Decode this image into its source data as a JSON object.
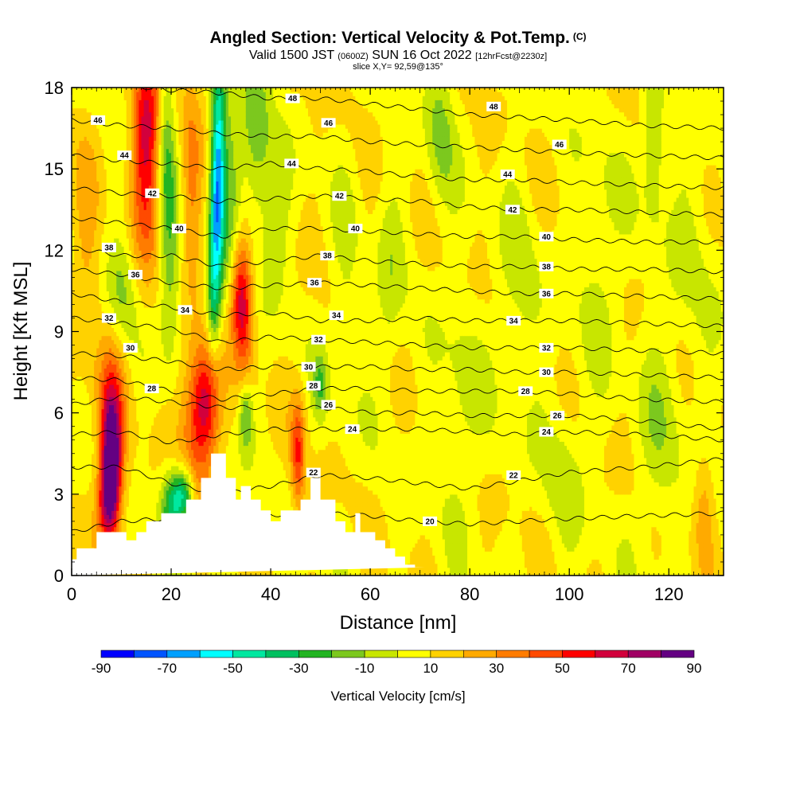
{
  "title": {
    "main": "Angled Section: Vertical Velocity & Pot.Temp.",
    "copyright": "(C)",
    "valid_prefix": "Valid 1500 JST",
    "valid_utc": "(0600Z)",
    "valid_date": "SUN 16 Oct 2022",
    "forecast": "[12hrFcst@2230z]",
    "slice": "slice X,Y= 92,59@135°"
  },
  "chart_data": {
    "type": "heatmap",
    "xlabel": "Distance [nm]",
    "ylabel": "Height [Kft MSL]",
    "xlim": [
      0,
      131
    ],
    "ylim": [
      0,
      18
    ],
    "xticks": [
      "0",
      "20",
      "40",
      "60",
      "80",
      "100",
      "120"
    ],
    "xtick_values": [
      0,
      20,
      40,
      60,
      80,
      100,
      120
    ],
    "yticks": [
      "0",
      "3",
      "6",
      "9",
      "12",
      "15",
      "18"
    ],
    "ytick_values": [
      0,
      3,
      6,
      9,
      12,
      15,
      18
    ],
    "colorbar": {
      "label": "Vertical Velocity [cm/s]",
      "tick_labels": [
        "-90",
        "-70",
        "-50",
        "-30",
        "-10",
        "10",
        "30",
        "50",
        "70",
        "90"
      ],
      "tick_values": [
        -90,
        -70,
        -50,
        -30,
        -10,
        10,
        30,
        50,
        70,
        90
      ],
      "levels": [
        -90,
        -80,
        -70,
        -60,
        -50,
        -40,
        -30,
        -20,
        -10,
        0,
        10,
        20,
        30,
        40,
        50,
        60,
        70,
        80,
        90
      ],
      "colors": [
        "#0000ff",
        "#0055ff",
        "#00a0ff",
        "#00ffff",
        "#00e8a0",
        "#00c060",
        "#22b422",
        "#7cc81e",
        "#c8e600",
        "#ffff00",
        "#ffd200",
        "#ffaa00",
        "#ff7c00",
        "#ff4a00",
        "#ff0000",
        "#d2003c",
        "#a00064",
        "#640082"
      ]
    },
    "terrain": {
      "distance": [
        0,
        1,
        1,
        5,
        5,
        11,
        11,
        13,
        13,
        15,
        15,
        18,
        18,
        23,
        23,
        26,
        26,
        28,
        28,
        31,
        31,
        33,
        33,
        34,
        34,
        36,
        36,
        38,
        38,
        40,
        40,
        42,
        42,
        46,
        46,
        48,
        48,
        50,
        50,
        53,
        53,
        55,
        55,
        57,
        57,
        58,
        58,
        61,
        61,
        63,
        63,
        65,
        65,
        67,
        67,
        69,
        69,
        71,
        71,
        131
      ],
      "height": [
        0.6,
        0.6,
        1.0,
        1.0,
        1.6,
        1.6,
        1.3,
        1.3,
        1.6,
        1.6,
        2.0,
        2.0,
        2.3,
        2.3,
        2.8,
        2.8,
        3.6,
        3.6,
        4.5,
        4.5,
        3.6,
        3.6,
        2.8,
        2.8,
        3.3,
        3.3,
        2.8,
        2.8,
        2.4,
        2.4,
        2.0,
        2.0,
        2.4,
        2.4,
        2.8,
        2.8,
        3.6,
        3.6,
        2.8,
        2.8,
        2.0,
        2.0,
        1.6,
        1.6,
        2.3,
        2.3,
        1.6,
        1.6,
        1.3,
        1.3,
        1.0,
        1.0,
        0.7,
        0.7,
        0.4,
        0.4,
        0.3,
        0.3,
        0.3
      ]
    },
    "isentropes": [
      {
        "value": 20,
        "x": [
          0,
          10,
          20,
          35,
          50,
          60,
          70,
          80,
          90,
          100,
          115,
          131
        ],
        "y": [
          1.6,
          2.0,
          2.1,
          2.2,
          2.3,
          2.2,
          2.0,
          1.9,
          2.0,
          2.1,
          2.2,
          2.3
        ]
      },
      {
        "value": 22,
        "x": [
          0,
          10,
          20,
          30,
          40,
          50,
          60,
          70,
          80,
          90,
          100,
          115,
          131
        ],
        "y": [
          4.0,
          4.0,
          3.4,
          3.0,
          3.3,
          3.7,
          3.6,
          3.4,
          3.2,
          3.5,
          3.8,
          4.0,
          4.3
        ]
      },
      {
        "value": 24,
        "x": [
          0,
          10,
          20,
          30,
          40,
          50,
          60,
          70,
          80,
          90,
          100,
          115,
          131
        ],
        "y": [
          5.2,
          5.3,
          4.9,
          5.2,
          5.4,
          5.4,
          5.4,
          5.4,
          5.3,
          5.2,
          5.3,
          5.2,
          5.0
        ]
      },
      {
        "value": 26,
        "x": [
          0,
          10,
          20,
          30,
          40,
          50,
          60,
          70,
          80,
          90,
          100,
          115,
          131
        ],
        "y": [
          6.3,
          6.6,
          6.4,
          6.2,
          6.2,
          6.2,
          6.0,
          6.0,
          5.9,
          5.9,
          5.9,
          5.7,
          5.4
        ]
      },
      {
        "value": 28,
        "x": [
          0,
          10,
          20,
          30,
          40,
          50,
          60,
          70,
          80,
          90,
          100,
          115,
          131
        ],
        "y": [
          7.3,
          7.2,
          6.8,
          6.5,
          6.7,
          6.9,
          6.9,
          6.8,
          6.8,
          6.8,
          6.7,
          6.5,
          6.4
        ]
      },
      {
        "value": 30,
        "x": [
          0,
          10,
          20,
          30,
          40,
          50,
          60,
          70,
          80,
          90,
          100,
          115,
          131
        ],
        "y": [
          8.2,
          8.1,
          7.9,
          7.6,
          7.7,
          7.7,
          7.7,
          7.6,
          7.6,
          7.5,
          7.5,
          7.4,
          7.3
        ]
      },
      {
        "value": 32,
        "x": [
          0,
          10,
          20,
          30,
          40,
          50,
          60,
          70,
          80,
          90,
          100,
          115,
          131
        ],
        "y": [
          9.5,
          9.3,
          9.1,
          8.6,
          8.8,
          8.7,
          8.6,
          8.5,
          8.4,
          8.4,
          8.4,
          8.3,
          8.2
        ]
      },
      {
        "value": 34,
        "x": [
          0,
          10,
          20,
          30,
          40,
          50,
          60,
          70,
          80,
          90,
          100,
          115,
          131
        ],
        "y": [
          10.4,
          10.1,
          9.9,
          9.6,
          9.7,
          9.4,
          9.4,
          9.5,
          9.4,
          9.4,
          9.4,
          9.3,
          9.2
        ]
      },
      {
        "value": 36,
        "x": [
          0,
          10,
          20,
          30,
          40,
          50,
          60,
          70,
          80,
          90,
          100,
          115,
          131
        ],
        "y": [
          11.3,
          11.1,
          10.8,
          10.6,
          10.7,
          10.8,
          10.7,
          10.6,
          10.5,
          10.4,
          10.4,
          10.3,
          10.2
        ]
      },
      {
        "value": 38,
        "x": [
          0,
          10,
          20,
          30,
          40,
          50,
          60,
          70,
          80,
          90,
          100,
          115,
          131
        ],
        "y": [
          12.1,
          11.8,
          11.8,
          11.4,
          11.6,
          11.8,
          11.6,
          11.5,
          11.4,
          11.4,
          11.3,
          11.3,
          11.2
        ]
      },
      {
        "value": 40,
        "x": [
          0,
          10,
          20,
          30,
          40,
          50,
          60,
          70,
          80,
          90,
          100,
          115,
          131
        ],
        "y": [
          13.2,
          13.0,
          12.8,
          12.5,
          12.8,
          12.8,
          12.7,
          12.6,
          12.5,
          12.5,
          12.4,
          12.3,
          12.3
        ]
      },
      {
        "value": 42,
        "x": [
          0,
          10,
          20,
          30,
          40,
          50,
          60,
          70,
          80,
          90,
          100,
          115,
          131
        ],
        "y": [
          14.3,
          14.1,
          14.0,
          13.8,
          13.9,
          14.0,
          13.9,
          13.8,
          13.6,
          13.5,
          13.5,
          13.4,
          13.3
        ]
      },
      {
        "value": 44,
        "x": [
          0,
          10,
          20,
          30,
          40,
          50,
          60,
          70,
          80,
          90,
          100,
          115,
          131
        ],
        "y": [
          15.5,
          15.3,
          15.2,
          15.0,
          15.2,
          15.0,
          14.9,
          14.7,
          14.6,
          14.6,
          14.5,
          14.4,
          14.3
        ]
      },
      {
        "value": 46,
        "x": [
          0,
          10,
          20,
          30,
          40,
          50,
          60,
          70,
          80,
          90,
          100,
          115,
          131
        ],
        "y": [
          16.8,
          16.6,
          16.5,
          16.3,
          16.2,
          16.2,
          16.0,
          15.9,
          15.8,
          15.7,
          15.6,
          15.5,
          15.4
        ]
      },
      {
        "value": 48,
        "x": [
          0,
          10,
          20,
          30,
          40,
          50,
          60,
          70,
          80,
          90,
          100,
          115,
          131
        ],
        "y": [
          18.3,
          18.1,
          17.9,
          17.8,
          17.6,
          17.6,
          17.4,
          17.2,
          17.0,
          16.9,
          16.8,
          16.6,
          16.5
        ]
      }
    ],
    "isentrope_labels": [
      {
        "text": "46",
        "x": 5.3,
        "y": 16.8
      },
      {
        "text": "44",
        "x": 10.6,
        "y": 15.5
      },
      {
        "text": "42",
        "x": 16.2,
        "y": 14.1
      },
      {
        "text": "40",
        "x": 21.6,
        "y": 12.8
      },
      {
        "text": "38",
        "x": 7.5,
        "y": 12.1
      },
      {
        "text": "36",
        "x": 12.8,
        "y": 11.1
      },
      {
        "text": "34",
        "x": 22.8,
        "y": 9.8
      },
      {
        "text": "32",
        "x": 7.5,
        "y": 9.5
      },
      {
        "text": "30",
        "x": 11.8,
        "y": 8.4
      },
      {
        "text": "28",
        "x": 16.1,
        "y": 6.9
      },
      {
        "text": "48",
        "x": 44.4,
        "y": 17.6
      },
      {
        "text": "46",
        "x": 51.6,
        "y": 16.7
      },
      {
        "text": "44",
        "x": 44.2,
        "y": 15.2
      },
      {
        "text": "42",
        "x": 53.8,
        "y": 14.0
      },
      {
        "text": "40",
        "x": 57.0,
        "y": 12.8
      },
      {
        "text": "38",
        "x": 51.4,
        "y": 11.8
      },
      {
        "text": "36",
        "x": 48.8,
        "y": 10.8
      },
      {
        "text": "34",
        "x": 53.2,
        "y": 9.6
      },
      {
        "text": "32",
        "x": 49.6,
        "y": 8.7
      },
      {
        "text": "30",
        "x": 47.6,
        "y": 7.7
      },
      {
        "text": "28",
        "x": 48.6,
        "y": 7.0
      },
      {
        "text": "26",
        "x": 51.6,
        "y": 6.3
      },
      {
        "text": "24",
        "x": 56.4,
        "y": 5.4
      },
      {
        "text": "22",
        "x": 48.6,
        "y": 3.8
      },
      {
        "text": "48",
        "x": 84.8,
        "y": 17.3
      },
      {
        "text": "46",
        "x": 98.0,
        "y": 15.9
      },
      {
        "text": "44",
        "x": 87.6,
        "y": 14.8
      },
      {
        "text": "42",
        "x": 88.6,
        "y": 13.5
      },
      {
        "text": "40",
        "x": 95.4,
        "y": 12.5
      },
      {
        "text": "38",
        "x": 95.4,
        "y": 11.4
      },
      {
        "text": "36",
        "x": 95.4,
        "y": 10.4
      },
      {
        "text": "34",
        "x": 88.8,
        "y": 9.4
      },
      {
        "text": "32",
        "x": 95.4,
        "y": 8.4
      },
      {
        "text": "30",
        "x": 95.4,
        "y": 7.5
      },
      {
        "text": "28",
        "x": 91.2,
        "y": 6.8
      },
      {
        "text": "26",
        "x": 97.6,
        "y": 5.9
      },
      {
        "text": "24",
        "x": 95.4,
        "y": 5.3
      },
      {
        "text": "22",
        "x": 88.8,
        "y": 3.7
      },
      {
        "text": "20",
        "x": 72.0,
        "y": 2.0
      }
    ],
    "velocity_features": [
      {
        "x": 8,
        "y": 4.0,
        "v": 70,
        "sx": 1.3,
        "sy": 1.6
      },
      {
        "x": 8,
        "y": 5.5,
        "v": 40,
        "sx": 2.0,
        "sy": 2.2
      },
      {
        "x": 7,
        "y": 2.5,
        "v": 35,
        "sx": 1.5,
        "sy": 1.0
      },
      {
        "x": 15,
        "y": 17,
        "v": 45,
        "sx": 2.0,
        "sy": 2.0
      },
      {
        "x": 15,
        "y": 14,
        "v": 25,
        "sx": 2.0,
        "sy": 2.5
      },
      {
        "x": 19,
        "y": 16,
        "v": -25,
        "sx": 1.2,
        "sy": 3.0
      },
      {
        "x": 20,
        "y": 11,
        "v": -20,
        "sx": 1.5,
        "sy": 2.5
      },
      {
        "x": 24,
        "y": 14.5,
        "v": 25,
        "sx": 1.5,
        "sy": 2.5
      },
      {
        "x": 27,
        "y": 6.5,
        "v": 45,
        "sx": 2.0,
        "sy": 1.5
      },
      {
        "x": 25,
        "y": 5.5,
        "v": 30,
        "sx": 2.5,
        "sy": 2.0
      },
      {
        "x": 22.5,
        "y": 3.0,
        "v": -50,
        "sx": 1.5,
        "sy": 0.7
      },
      {
        "x": 20,
        "y": 2.5,
        "v": -35,
        "sx": 1.5,
        "sy": 1.0
      },
      {
        "x": 28.5,
        "y": 10,
        "v": -35,
        "sx": 1.0,
        "sy": 1.5
      },
      {
        "x": 29.5,
        "y": 16,
        "v": -55,
        "sx": 1.0,
        "sy": 2.5
      },
      {
        "x": 29,
        "y": 13,
        "v": -40,
        "sx": 1.0,
        "sy": 2.0
      },
      {
        "x": 32,
        "y": 14,
        "v": -20,
        "sx": 1.5,
        "sy": 3.0
      },
      {
        "x": 34,
        "y": 10.5,
        "v": 55,
        "sx": 1.5,
        "sy": 1.5
      },
      {
        "x": 35,
        "y": 8.5,
        "v": 20,
        "sx": 1.5,
        "sy": 1.5
      },
      {
        "x": 35,
        "y": 6.0,
        "v": -30,
        "sx": 1.0,
        "sy": 1.0
      },
      {
        "x": 37,
        "y": 16,
        "v": -25,
        "sx": 2.0,
        "sy": 2.5
      },
      {
        "x": 41,
        "y": 13,
        "v": -15,
        "sx": 2.0,
        "sy": 2.0
      },
      {
        "x": 45.5,
        "y": 4.5,
        "v": 40,
        "sx": 1.0,
        "sy": 1.5
      },
      {
        "x": 50,
        "y": 7.0,
        "v": -25,
        "sx": 1.0,
        "sy": 0.8
      },
      {
        "x": 55,
        "y": 10,
        "v": -10,
        "sx": 2.0,
        "sy": 3.0
      },
      {
        "x": 64,
        "y": 11,
        "v": -12,
        "sx": 2.0,
        "sy": 3.0
      },
      {
        "x": 74,
        "y": 16.5,
        "v": -20,
        "sx": 2.0,
        "sy": 2.0
      },
      {
        "x": 78,
        "y": 6,
        "v": -12,
        "sx": 3.0,
        "sy": 3.0
      },
      {
        "x": 90,
        "y": 10,
        "v": -12,
        "sx": 3.0,
        "sy": 3.0
      },
      {
        "x": 99,
        "y": 4,
        "v": -12,
        "sx": 3.0,
        "sy": 2.0
      },
      {
        "x": 106,
        "y": 12,
        "v": -12,
        "sx": 3.0,
        "sy": 3.0
      },
      {
        "x": 117,
        "y": 16,
        "v": -22,
        "sx": 1.5,
        "sy": 2.0
      },
      {
        "x": 118,
        "y": 5,
        "v": -12,
        "sx": 3.0,
        "sy": 3.0
      },
      {
        "x": 127,
        "y": 2.5,
        "v": 18,
        "sx": 1.5,
        "sy": 1.5
      },
      {
        "x": 10,
        "y": 10.5,
        "v": -18,
        "sx": 2.0,
        "sy": 1.5
      },
      {
        "x": 3,
        "y": 12,
        "v": 15,
        "sx": 2.0,
        "sy": 3.0
      },
      {
        "x": 125,
        "y": 12,
        "v": -8,
        "sx": 4.0,
        "sy": 4.0
      }
    ]
  }
}
